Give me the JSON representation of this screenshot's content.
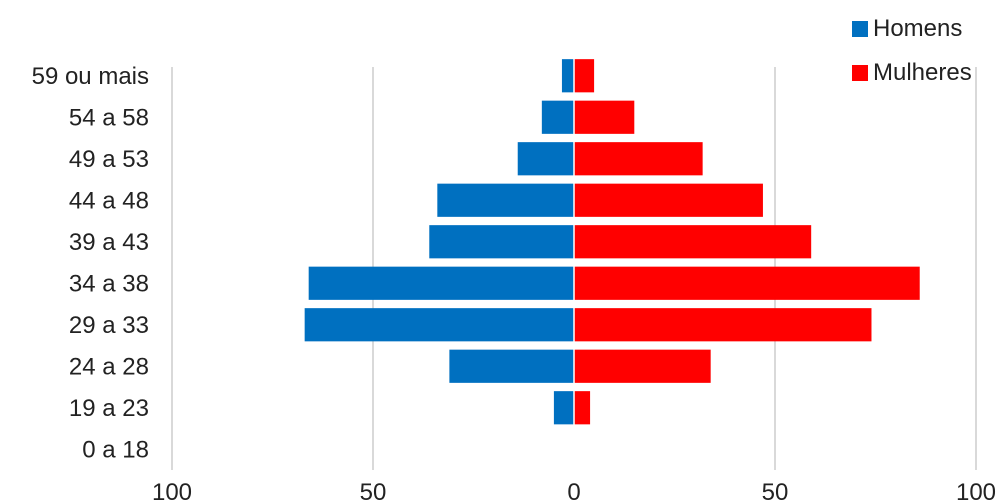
{
  "chart_data": {
    "type": "bar",
    "orientation": "horizontal",
    "style": "population-pyramid",
    "categories": [
      "0 a 18",
      "19 a 23",
      "24 a 28",
      "29 a 33",
      "34 a 38",
      "39 a 43",
      "44 a 48",
      "49 a 53",
      "54 a 58",
      "59 ou mais"
    ],
    "series": [
      {
        "name": "Homens",
        "color": "#0070C0",
        "direction": "left",
        "values": [
          0,
          5,
          31,
          67,
          66,
          36,
          34,
          14,
          8,
          3
        ]
      },
      {
        "name": "Mulheres",
        "color": "#FF0000",
        "direction": "right",
        "values": [
          0,
          4,
          34,
          74,
          86,
          59,
          47,
          32,
          15,
          5
        ]
      }
    ],
    "x_ticks": [
      {
        "value": -100,
        "label": "100"
      },
      {
        "value": -50,
        "label": "50"
      },
      {
        "value": 0,
        "label": "0"
      },
      {
        "value": 50,
        "label": "50"
      },
      {
        "value": 100,
        "label": "100"
      }
    ],
    "xlim": [
      -100,
      100
    ],
    "grid": "vertical",
    "legend_position": "top-right",
    "title": "",
    "xlabel": "",
    "ylabel": ""
  }
}
